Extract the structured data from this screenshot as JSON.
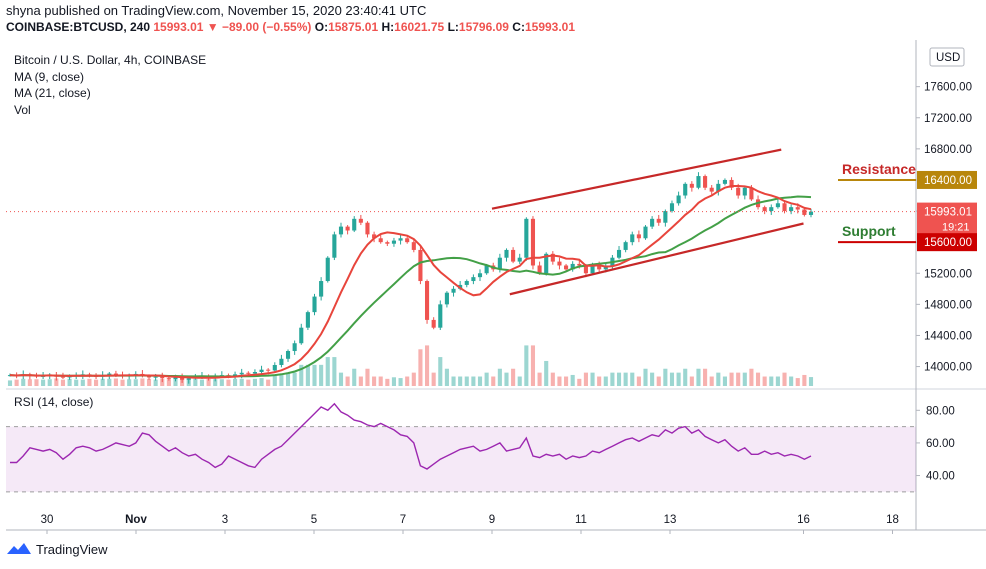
{
  "header": {
    "text": "shyna published on TradingView.com, November 15, 2020 23:40:41 UTC"
  },
  "ohlc": {
    "symbol": "COINBASE:BTCUSD, 240",
    "last": "15993.01",
    "change": "▼ −89.00 (−0.55%)",
    "o_label": "O:",
    "o": "15875.01",
    "h_label": "H:",
    "h": "16021.75",
    "l_label": "L:",
    "l": "15796.09",
    "c_label": "C:",
    "c": "15993.01"
  },
  "legend": {
    "title": "Bitcoin / U.S. Dollar, 4h, COINBASE",
    "ma9": "MA (9, close)",
    "ma21": "MA (21, close)",
    "vol": "Vol"
  },
  "rsi_label": "RSI (14, close)",
  "currency": "USD",
  "brand": "TradingView",
  "colors": {
    "up": "#26a69a",
    "down": "#ef5350",
    "ma9": "#e8453c",
    "ma21": "#43a047",
    "channel": "#c62828",
    "resistance": "#b8860b",
    "rsi": "#9c27b0"
  },
  "chart_data": {
    "type": "candlestick",
    "price_axis": {
      "ticks": [
        14000,
        14400,
        14800,
        15200,
        15600,
        16000,
        16400,
        16800,
        17200,
        17600
      ],
      "labels": [
        "14000.00",
        "14400.00",
        "14800.00",
        "15200.00",
        "15600.00",
        "16000.00",
        "16400.00",
        "16800.00",
        "17200.00",
        "17600.00"
      ],
      "ylim": [
        13750,
        18200
      ]
    },
    "time_axis": {
      "labels": [
        "30",
        "Nov",
        "3",
        "5",
        "7",
        "9",
        "11",
        "13",
        "16",
        "18"
      ],
      "days": [
        0,
        2,
        4,
        6,
        8,
        10,
        12,
        14,
        17,
        19
      ]
    },
    "last_price": {
      "value": 15993.01,
      "label": "15993.01",
      "countdown": "19:21"
    },
    "annotations": [
      {
        "text": "Resistance",
        "value": 16400,
        "label": "16400.00",
        "color": "#b8860b"
      },
      {
        "text": "Support",
        "value": 15600,
        "label": "15600.00",
        "color": "#cc0000"
      }
    ],
    "channel": {
      "upper": [
        [
          10.0,
          16030
        ],
        [
          16.5,
          16790
        ]
      ],
      "lower": [
        [
          10.4,
          14930
        ],
        [
          17.0,
          15840
        ]
      ]
    },
    "close": [
      13890,
      13880,
      13900,
      13885,
      13870,
      13880,
      13895,
      13870,
      13860,
      13880,
      13890,
      13900,
      13880,
      13870,
      13890,
      13910,
      13885,
      13875,
      13890,
      13905,
      13880,
      13860,
      13870,
      13850,
      13840,
      13860,
      13830,
      13850,
      13870,
      13880,
      13860,
      13875,
      13890,
      13880,
      13900,
      13920,
      13910,
      13930,
      13960,
      13950,
      14020,
      14100,
      14200,
      14300,
      14500,
      14700,
      14900,
      15100,
      15400,
      15700,
      15800,
      15750,
      15900,
      15850,
      15700,
      15650,
      15600,
      15580,
      15620,
      15650,
      15600,
      15500,
      15100,
      14600,
      14500,
      14800,
      14950,
      15000,
      15050,
      15100,
      15150,
      15200,
      15300,
      15250,
      15400,
      15500,
      15350,
      15400,
      15900,
      15300,
      15200,
      15450,
      15350,
      15300,
      15250,
      15320,
      15300,
      15200,
      15300,
      15250,
      15300,
      15400,
      15500,
      15600,
      15700,
      15650,
      15800,
      15900,
      15850,
      16000,
      16100,
      16200,
      16350,
      16300,
      16450,
      16300,
      16250,
      16350,
      16400,
      16300,
      16200,
      16300,
      16150,
      16050,
      16000,
      16050,
      16100,
      16000,
      16050,
      16020,
      15950,
      15993.01
    ],
    "rsi": {
      "levels": [
        40,
        60,
        80
      ],
      "band": [
        30,
        70
      ],
      "ylim": [
        25,
        90
      ],
      "values": [
        48,
        48,
        52,
        57,
        56,
        55,
        56,
        54,
        50,
        53,
        57,
        58,
        57,
        55,
        56,
        58,
        60,
        59,
        58,
        60,
        66,
        65,
        61,
        58,
        55,
        57,
        54,
        52,
        53,
        50,
        48,
        45,
        47,
        52,
        50,
        48,
        46,
        45,
        50,
        53,
        56,
        58,
        62,
        66,
        70,
        74,
        78,
        82,
        80,
        84,
        79,
        77,
        74,
        73,
        71,
        70,
        72,
        70,
        68,
        65,
        64,
        60,
        46,
        44,
        47,
        50,
        52,
        54,
        56,
        57,
        58,
        55,
        56,
        58,
        60,
        55,
        56,
        57,
        63,
        52,
        51,
        53,
        52,
        53,
        50,
        52,
        51,
        52,
        55,
        54,
        56,
        58,
        60,
        62,
        63,
        61,
        63,
        65,
        64,
        68,
        66,
        69,
        70,
        66,
        68,
        64,
        62,
        60,
        62,
        58,
        55,
        57,
        53,
        53,
        55,
        53,
        54,
        52,
        53,
        52,
        50,
        52
      ]
    },
    "volume": {
      "ylim": [
        0,
        100
      ]
    }
  }
}
